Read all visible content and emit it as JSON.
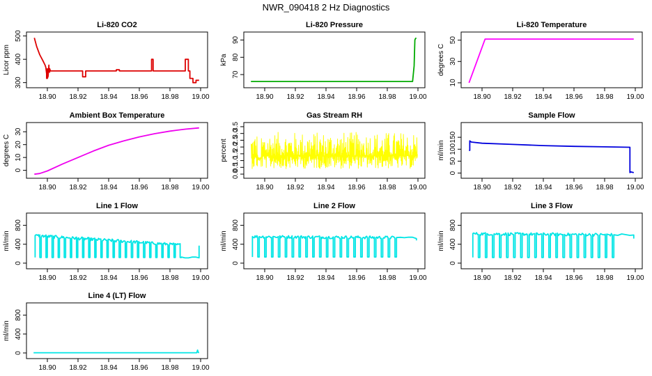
{
  "figure": {
    "title": "NWR_090418  2 Hz Diagnostics"
  },
  "chart_data": [
    {
      "type": "line",
      "title": "Li-820 CO2",
      "xlabel": "",
      "ylabel": "Licor ppm",
      "xlim": [
        18.89,
        19.0
      ],
      "ylim": [
        290,
        505
      ],
      "xticks": [
        "18.90",
        "18.92",
        "18.94",
        "18.96",
        "18.98",
        "19.00"
      ],
      "yticks": [
        "300",
        "400",
        "500"
      ],
      "color": "#dd0000",
      "series": [
        {
          "name": "CO2",
          "x": [
            18.8915,
            18.893,
            18.895,
            18.897,
            18.8985,
            18.899,
            18.8995,
            18.8995,
            18.9,
            18.9,
            18.9005,
            18.901,
            18.901,
            18.9015,
            18.9015,
            18.902,
            18.904,
            18.923,
            18.923,
            18.925,
            18.925,
            18.945,
            18.945,
            18.947,
            18.947,
            18.968,
            18.968,
            18.969,
            18.969,
            18.99,
            18.99,
            18.992,
            18.992,
            18.993,
            18.993,
            18.995,
            18.995,
            18.997,
            18.997,
            18.999
          ],
          "y": [
            492,
            455,
            420,
            395,
            375,
            365,
            338,
            318,
            360,
            318,
            328,
            375,
            350,
            345,
            360,
            350,
            350,
            350,
            325,
            325,
            350,
            350,
            355,
            355,
            350,
            350,
            400,
            400,
            350,
            350,
            400,
            400,
            350,
            350,
            318,
            318,
            300,
            300,
            310,
            310
          ]
        }
      ]
    },
    {
      "type": "line",
      "title": "Li-820 Pressure",
      "xlabel": "",
      "ylabel": "kPa",
      "xlim": [
        18.89,
        19.0
      ],
      "ylim": [
        64,
        93
      ],
      "xticks": [
        "18.90",
        "18.92",
        "18.94",
        "18.96",
        "18.98",
        "19.00"
      ],
      "yticks": [
        "70",
        "80",
        "90"
      ],
      "color": "#00aa00",
      "series": [
        {
          "name": "Pressure",
          "x": [
            18.891,
            18.9965,
            18.9975,
            18.998,
            18.9985,
            18.999
          ],
          "y": [
            66,
            66,
            75,
            90,
            91,
            91
          ]
        }
      ]
    },
    {
      "type": "line",
      "title": "Li-820 Temperature",
      "xlabel": "",
      "ylabel": "degrees C",
      "xlim": [
        18.89,
        19.0
      ],
      "ylim": [
        8,
        55
      ],
      "xticks": [
        "18.90",
        "18.92",
        "18.94",
        "18.96",
        "18.98",
        "19.00"
      ],
      "yticks": [
        "10",
        "30",
        "50"
      ],
      "color": "#ff00ff",
      "series": [
        {
          "name": "Temperature",
          "x": [
            18.8915,
            18.902,
            18.91,
            18.95,
            18.999
          ],
          "y": [
            10,
            51,
            51,
            51,
            51
          ]
        }
      ]
    },
    {
      "type": "line",
      "title": "Ambient Box Temperature",
      "xlabel": "",
      "ylabel": "degrees C",
      "xlim": [
        18.89,
        19.0
      ],
      "ylim": [
        -4,
        35
      ],
      "xticks": [
        "18.90",
        "18.92",
        "18.94",
        "18.96",
        "18.98",
        "19.00"
      ],
      "yticks": [
        "0",
        "10",
        "20",
        "30"
      ],
      "color": "#ee00ee",
      "series": [
        {
          "name": "Box Temperature",
          "x": [
            18.8915,
            18.895,
            18.9,
            18.91,
            18.92,
            18.93,
            18.94,
            18.95,
            18.96,
            18.97,
            18.98,
            18.99,
            18.999
          ],
          "y": [
            -3,
            -2.5,
            -0.5,
            5,
            10,
            15,
            19.5,
            23,
            26,
            28.5,
            30.5,
            32,
            33
          ]
        }
      ]
    },
    {
      "type": "line",
      "title": "Gas Stream RH",
      "xlabel": "",
      "ylabel": "percent",
      "xlim": [
        18.89,
        19.0
      ],
      "ylim": [
        -0.1,
        3.6
      ],
      "xticks": [
        "18.90",
        "18.92",
        "18.94",
        "18.96",
        "18.98",
        "19.00"
      ],
      "yticks": [
        "0.0",
        "0.5",
        "1.0",
        "1.5",
        "2.0",
        "2.5",
        "3.0",
        "3.5"
      ],
      "color": "#ffff00",
      "series": [
        {
          "name": "RH",
          "x": [],
          "y": []
        }
      ],
      "band": {
        "center": 1.35,
        "low": 0.4,
        "high": 3.1
      }
    },
    {
      "type": "line",
      "title": "Sample Flow",
      "xlabel": "",
      "ylabel": "ml/min",
      "xlim": [
        18.89,
        19.0
      ],
      "ylim": [
        -10,
        200
      ],
      "xticks": [
        "18.90",
        "18.92",
        "18.94",
        "18.96",
        "18.98",
        "19.00"
      ],
      "yticks": [
        "0",
        "50",
        "100",
        "150"
      ],
      "color": "#0000dd",
      "series": [
        {
          "name": "Sample Flow",
          "x": [
            18.8915,
            18.892,
            18.892,
            18.893,
            18.9,
            18.92,
            18.94,
            18.96,
            18.98,
            18.9965,
            18.9965,
            18.997,
            18.999
          ],
          "y": [
            95,
            95,
            135,
            130,
            125,
            120,
            115,
            112,
            110,
            108,
            2,
            5,
            2
          ]
        }
      ]
    },
    {
      "type": "line",
      "title": "Line 1 Flow",
      "xlabel": "",
      "ylabel": "ml/min",
      "xlim": [
        18.89,
        19.0
      ],
      "ylim": [
        -60,
        1000
      ],
      "xticks": [
        "18.90",
        "18.92",
        "18.94",
        "18.96",
        "18.98",
        "19.00"
      ],
      "yticks": [
        "0",
        "400",
        "800"
      ],
      "color": "#00e5e5",
      "series": [
        {
          "name": "Line 1 Flow",
          "x": [],
          "y": []
        }
      ],
      "square_wave": {
        "start": 18.892,
        "end": 18.999,
        "high": [
          580,
          380
        ],
        "low": 120,
        "cycles": 24,
        "off_from": 18.9875,
        "off_level": 130,
        "tail_level": 370
      }
    },
    {
      "type": "line",
      "title": "Line 2 Flow",
      "xlabel": "",
      "ylabel": "ml/min",
      "xlim": [
        18.89,
        19.0
      ],
      "ylim": [
        -60,
        1000
      ],
      "xticks": [
        "18.90",
        "18.92",
        "18.94",
        "18.96",
        "18.98",
        "19.00"
      ],
      "yticks": [
        "0",
        "400",
        "800"
      ],
      "color": "#00e5e5",
      "series": [
        {
          "name": "Line 2 Flow",
          "x": [],
          "y": []
        }
      ],
      "square_wave": {
        "start": 18.892,
        "end": 18.999,
        "high": [
          560,
          540
        ],
        "low": 130,
        "cycles": 21,
        "off_from": 18.986,
        "off_level": 540,
        "tail_level": 480
      }
    },
    {
      "type": "line",
      "title": "Line 3 Flow",
      "xlabel": "",
      "ylabel": "ml/min",
      "xlim": [
        18.89,
        19.0
      ],
      "ylim": [
        -60,
        1000
      ],
      "xticks": [
        "18.90",
        "18.92",
        "18.94",
        "18.96",
        "18.98",
        "19.00"
      ],
      "yticks": [
        "0",
        "400",
        "800"
      ],
      "color": "#00e5e5",
      "series": [
        {
          "name": "Line 3 Flow",
          "x": [],
          "y": []
        }
      ],
      "square_wave": {
        "start": 18.894,
        "end": 18.999,
        "high": [
          620,
          600
        ],
        "low": 120,
        "cycles": 20,
        "off_from": 18.986,
        "off_level": 600,
        "tail_level": 520
      }
    },
    {
      "type": "line",
      "title": "Line 4 (LT) Flow",
      "xlabel": "",
      "ylabel": "ml/min",
      "xlim": [
        18.89,
        19.0
      ],
      "ylim": [
        -60,
        1000
      ],
      "xticks": [
        "18.90",
        "18.92",
        "18.94",
        "18.96",
        "18.98",
        "19.00"
      ],
      "yticks": [
        "0",
        "400",
        "800"
      ],
      "color": "#00e5e5",
      "series": [
        {
          "name": "Line 4 (LT) Flow",
          "x": [
            18.891,
            18.9975,
            18.998,
            18.9985,
            18.999
          ],
          "y": [
            5,
            5,
            60,
            10,
            5
          ]
        }
      ]
    }
  ]
}
